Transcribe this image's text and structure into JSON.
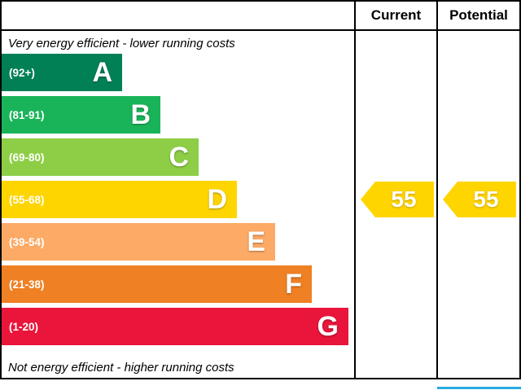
{
  "header": {
    "current_label": "Current",
    "potential_label": "Potential"
  },
  "captions": {
    "top": "Very energy efficient - lower running costs",
    "bottom": "Not energy efficient - higher running costs"
  },
  "bands": [
    {
      "letter": "A",
      "range": "(92+)",
      "color": "#008054"
    },
    {
      "letter": "B",
      "range": "(81-91)",
      "color": "#19b459"
    },
    {
      "letter": "C",
      "range": "(69-80)",
      "color": "#8dce46"
    },
    {
      "letter": "D",
      "range": "(55-68)",
      "color": "#ffd500"
    },
    {
      "letter": "E",
      "range": "(39-54)",
      "color": "#fcaa65"
    },
    {
      "letter": "F",
      "range": "(21-38)",
      "color": "#ef8023"
    },
    {
      "letter": "G",
      "range": "(1-20)",
      "color": "#e9153b"
    }
  ],
  "ratings": {
    "current": {
      "value": "55",
      "color": "#ffd500"
    },
    "potential": {
      "value": "55",
      "color": "#ffd500"
    }
  },
  "chart_data": {
    "type": "bar",
    "title": "Energy efficiency rating (EPC style band chart)",
    "categories": [
      "A (92+)",
      "B (81-91)",
      "C (69-80)",
      "D (55-68)",
      "E (39-54)",
      "F (21-38)",
      "G (1-20)"
    ],
    "band_colors": [
      "#008054",
      "#19b459",
      "#8dce46",
      "#ffd500",
      "#fcaa65",
      "#ef8023",
      "#e9153b"
    ],
    "series": [
      {
        "name": "Current",
        "value": 55,
        "band": "D"
      },
      {
        "name": "Potential",
        "value": 55,
        "band": "D"
      }
    ],
    "scale_min": 1,
    "scale_max": 100,
    "annotations": [
      "Very energy efficient - lower running costs",
      "Not energy efficient - higher running costs"
    ],
    "legend_position": "none",
    "grid": false
  }
}
